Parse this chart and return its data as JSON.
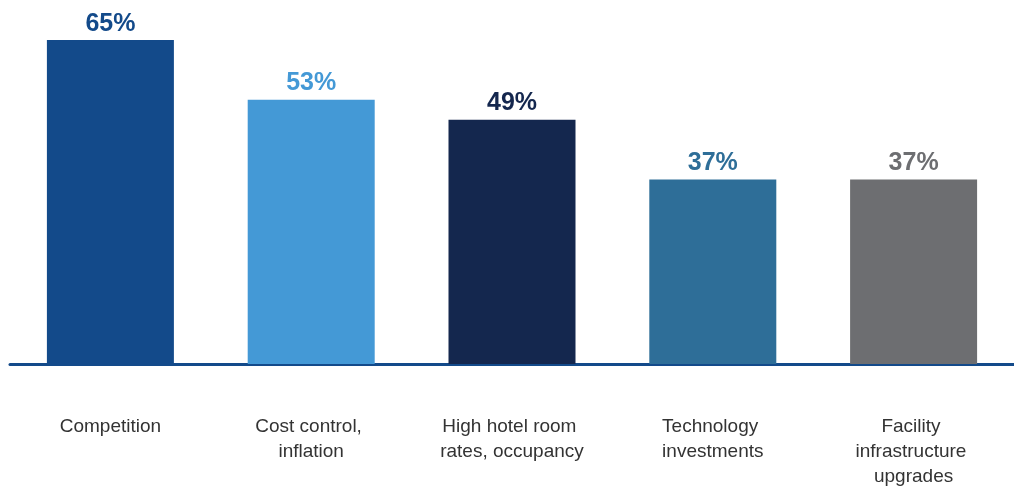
{
  "chart_data": {
    "type": "bar",
    "categories": [
      "Competition",
      "Cost control, inflation",
      "High hotel room rates, occupancy",
      "Technology investments",
      "Facility infrastructure upgrades"
    ],
    "values": [
      65,
      53,
      49,
      37,
      37
    ],
    "value_labels": [
      "65%",
      "53%",
      "49%",
      "37%",
      "37%"
    ],
    "colors": [
      "#134a8a",
      "#4499d6",
      "#14274e",
      "#2e6e98",
      "#6d6e71"
    ]
  }
}
